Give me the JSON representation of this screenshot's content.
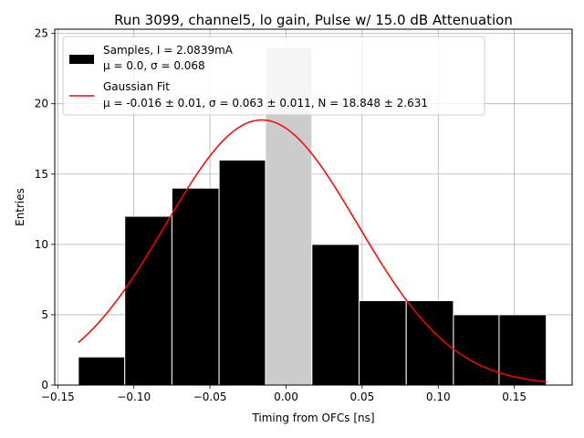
{
  "chart_data": {
    "type": "bar",
    "title": "Run 3099, channel5, lo gain, Pulse w/ 15.0 dB Attenuation",
    "xlabel": "Timing from OFCs [ns]",
    "ylabel": "Entries",
    "xlim": [
      -0.152,
      0.188
    ],
    "ylim": [
      0,
      25.3
    ],
    "grid": true,
    "legend_position": "upper-left",
    "xticks": [
      {
        "value": -0.15,
        "label": "−0.15"
      },
      {
        "value": -0.1,
        "label": "−0.10"
      },
      {
        "value": -0.05,
        "label": "−0.05"
      },
      {
        "value": 0.0,
        "label": "0.00"
      },
      {
        "value": 0.05,
        "label": "0.05"
      },
      {
        "value": 0.1,
        "label": "0.10"
      },
      {
        "value": 0.15,
        "label": "0.15"
      }
    ],
    "yticks": [
      0,
      5,
      10,
      15,
      20,
      25
    ],
    "histogram": {
      "name": "Samples, I = 2.0839mA",
      "stats_label": "μ = 0.0, σ = 0.068",
      "color": "#000000",
      "highlight_color": "#cccccc",
      "bin_edges": [
        -0.1365,
        -0.106,
        -0.075,
        -0.044,
        -0.0135,
        0.017,
        0.048,
        0.079,
        0.11,
        0.14,
        0.171
      ],
      "values": [
        2,
        12,
        14,
        16,
        24,
        10,
        6,
        6,
        5,
        5
      ],
      "highlight_bin": 4
    },
    "fit": {
      "name": "Gaussian Fit",
      "stats_label": "μ = -0.016 ± 0.01, σ = 0.063 ± 0.011, N = 18.848 ± 2.631",
      "color": "#ff0000",
      "mu": -0.016,
      "sigma": 0.063,
      "N": 18.848,
      "x_range": [
        -0.1365,
        0.171
      ]
    }
  }
}
